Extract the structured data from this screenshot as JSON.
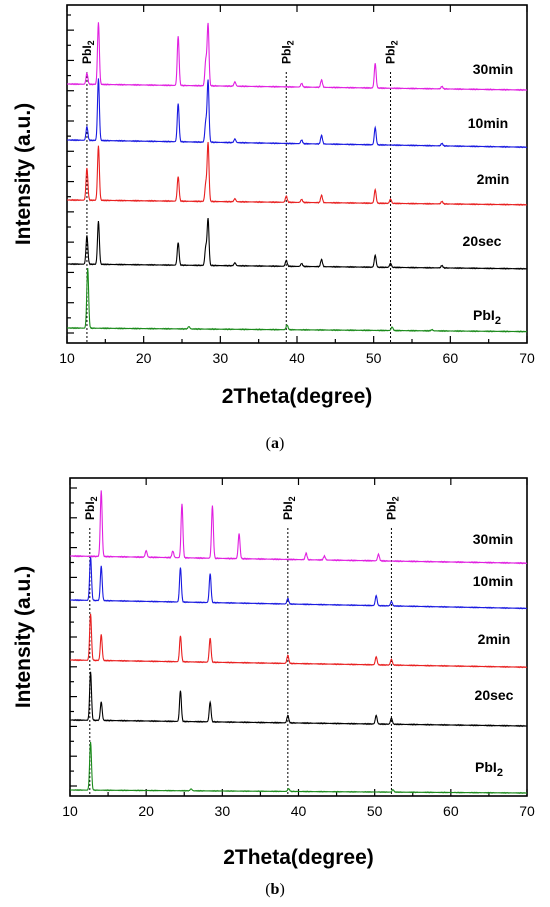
{
  "chart_data": [
    {
      "type": "line",
      "caption": "(a)",
      "caption_letter": "a",
      "xlabel": "2Theta(degree)",
      "ylabel": "Intensity (a.u.)",
      "xlim": [
        10,
        70
      ],
      "x_ticks": [
        10,
        20,
        30,
        40,
        50,
        60,
        70
      ],
      "y_tick_labels": "none",
      "reference_lines": [
        {
          "x": 12.6,
          "label": "PbI",
          "label_sub": "2"
        },
        {
          "x": 38.6,
          "label": "PbI",
          "label_sub": "2"
        },
        {
          "x": 52.2,
          "label": "PbI",
          "label_sub": "2"
        }
      ],
      "series": [
        {
          "name": "PbI",
          "name_sub": "2",
          "color": "#e0107a",
          "line_color": "#1a8a1a",
          "offset": 0.0,
          "peaks": [
            [
              12.7,
              1.0
            ],
            [
              25.9,
              0.04
            ],
            [
              38.7,
              0.08
            ],
            [
              52.4,
              0.06
            ],
            [
              57.6,
              0.02
            ]
          ]
        },
        {
          "name": "20sec",
          "color": "#000000",
          "line_color": "#000000",
          "offset": 1.0,
          "peaks": [
            [
              12.6,
              0.48
            ],
            [
              14.1,
              0.72
            ],
            [
              24.5,
              0.38
            ],
            [
              28.1,
              0.3
            ],
            [
              28.4,
              0.78
            ],
            [
              31.9,
              0.05
            ],
            [
              38.6,
              0.1
            ],
            [
              40.6,
              0.05
            ],
            [
              43.2,
              0.12
            ],
            [
              50.2,
              0.2
            ],
            [
              52.2,
              0.07
            ],
            [
              58.9,
              0.04
            ]
          ]
        },
        {
          "name": "2min",
          "color": "#000000",
          "line_color": "#e82020",
          "offset": 2.0,
          "peaks": [
            [
              12.6,
              0.52
            ],
            [
              14.1,
              0.88
            ],
            [
              24.5,
              0.4
            ],
            [
              28.1,
              0.28
            ],
            [
              28.4,
              0.95
            ],
            [
              31.9,
              0.05
            ],
            [
              38.6,
              0.1
            ],
            [
              40.6,
              0.05
            ],
            [
              43.2,
              0.12
            ],
            [
              50.2,
              0.22
            ],
            [
              52.2,
              0.07
            ],
            [
              58.9,
              0.04
            ]
          ]
        },
        {
          "name": "10min",
          "color": "#000000",
          "line_color": "#1a1ae0",
          "offset": 3.0,
          "peaks": [
            [
              12.6,
              0.22
            ],
            [
              14.1,
              1.0
            ],
            [
              24.5,
              0.62
            ],
            [
              28.1,
              0.32
            ],
            [
              28.4,
              1.0
            ],
            [
              31.9,
              0.06
            ],
            [
              40.6,
              0.06
            ],
            [
              43.2,
              0.14
            ],
            [
              50.2,
              0.28
            ],
            [
              58.9,
              0.04
            ]
          ]
        },
        {
          "name": "30min",
          "color": "#000000",
          "line_color": "#e020e0",
          "offset": 4.0,
          "peaks": [
            [
              12.6,
              0.18
            ],
            [
              14.1,
              1.0
            ],
            [
              24.5,
              0.8
            ],
            [
              28.1,
              0.4
            ],
            [
              28.4,
              1.0
            ],
            [
              31.9,
              0.07
            ],
            [
              40.6,
              0.06
            ],
            [
              43.2,
              0.12
            ],
            [
              50.2,
              0.4
            ],
            [
              58.9,
              0.04
            ]
          ]
        }
      ]
    },
    {
      "type": "line",
      "caption": "(b)",
      "caption_letter": "b",
      "xlabel": "2Theta(degree)",
      "ylabel": "Intensity (a.u.)",
      "xlim": [
        10,
        70
      ],
      "x_ticks": [
        10,
        20,
        30,
        40,
        50,
        60,
        70
      ],
      "y_tick_labels": "none",
      "reference_lines": [
        {
          "x": 12.6,
          "label": "PbI",
          "label_sub": "2"
        },
        {
          "x": 38.6,
          "label": "PbI",
          "label_sub": "2"
        },
        {
          "x": 52.2,
          "label": "PbI",
          "label_sub": "2"
        }
      ],
      "series": [
        {
          "name": "PbI",
          "name_sub": "2",
          "color": "#e0107a",
          "line_color": "#1a8a1a",
          "offset": 0.0,
          "peaks": [
            [
              12.7,
              1.0
            ],
            [
              25.9,
              0.04
            ],
            [
              38.7,
              0.06
            ],
            [
              52.4,
              0.05
            ]
          ]
        },
        {
          "name": "20sec",
          "color": "#000000",
          "line_color": "#000000",
          "offset": 1.0,
          "peaks": [
            [
              12.7,
              0.78
            ],
            [
              14.1,
              0.3
            ],
            [
              24.5,
              0.5
            ],
            [
              28.4,
              0.32
            ],
            [
              38.6,
              0.12
            ],
            [
              50.2,
              0.14
            ],
            [
              52.2,
              0.1
            ]
          ]
        },
        {
          "name": "2min",
          "color": "#000000",
          "line_color": "#e82020",
          "offset": 2.0,
          "peaks": [
            [
              12.7,
              0.8
            ],
            [
              14.1,
              0.45
            ],
            [
              24.5,
              0.45
            ],
            [
              28.4,
              0.42
            ],
            [
              38.6,
              0.14
            ],
            [
              50.2,
              0.14
            ],
            [
              52.2,
              0.1
            ]
          ]
        },
        {
          "name": "10min",
          "color": "#000000",
          "line_color": "#1a1ae0",
          "offset": 3.0,
          "peaks": [
            [
              12.7,
              0.78
            ],
            [
              14.1,
              0.62
            ],
            [
              24.5,
              0.62
            ],
            [
              28.4,
              0.52
            ],
            [
              38.6,
              0.1
            ],
            [
              50.2,
              0.18
            ],
            [
              52.2,
              0.08
            ]
          ]
        },
        {
          "name": "30min",
          "color": "#000000",
          "line_color": "#e020e0",
          "offset": 4.0,
          "peaks": [
            [
              14.1,
              1.0
            ],
            [
              20.0,
              0.1
            ],
            [
              23.5,
              0.1
            ],
            [
              24.7,
              0.82
            ],
            [
              28.7,
              0.8
            ],
            [
              32.2,
              0.38
            ],
            [
              41.0,
              0.1
            ],
            [
              43.4,
              0.06
            ],
            [
              50.5,
              0.1
            ]
          ]
        }
      ]
    }
  ]
}
